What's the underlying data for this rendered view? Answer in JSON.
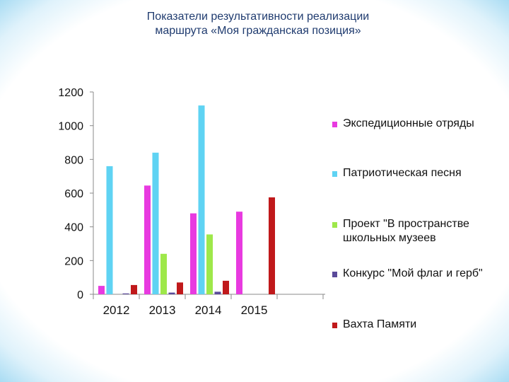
{
  "chart_data": {
    "type": "bar",
    "title": "Показатели результативности реализации маршрута «Моя гражданская позиция»",
    "categories": [
      "2012",
      "2013",
      "2014",
      "2015"
    ],
    "ylim": [
      0,
      1200
    ],
    "yticks": [
      "0",
      "200",
      "400",
      "600",
      "800",
      "1000",
      "1200"
    ],
    "grid": false,
    "legend_position": "right",
    "series": [
      {
        "name": "Экспедиционные отряды",
        "color": "#e83ae0",
        "values": [
          50,
          645,
          480,
          490
        ]
      },
      {
        "name": "Патриотическая песня",
        "color": "#5fd3f3",
        "values": [
          760,
          840,
          1120,
          0
        ]
      },
      {
        "name": "Проект \"В пространстве школьных музеев",
        "color": "#9ee84a",
        "values": [
          0,
          240,
          355,
          0
        ]
      },
      {
        "name": "Конкурс \"Мой флаг и герб\"",
        "color": "#5a4a9a",
        "values": [
          5,
          10,
          15,
          0
        ]
      },
      {
        "name": "Вахта Памяти",
        "color": "#c0191b",
        "values": [
          55,
          70,
          80,
          575
        ]
      }
    ]
  }
}
